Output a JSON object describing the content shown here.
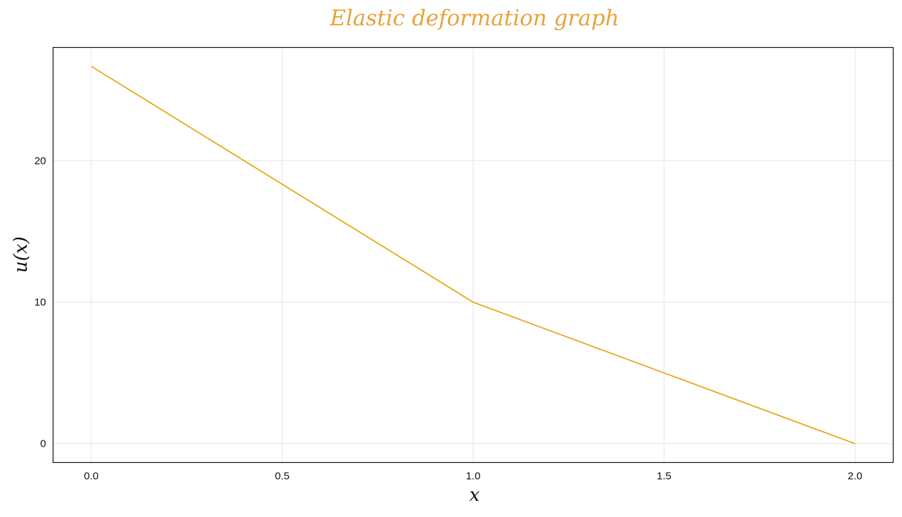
{
  "chart_data": {
    "type": "line",
    "title": "Elastic deformation graph",
    "xlabel": "x",
    "ylabel": "u(x)",
    "xlim": [
      -0.1,
      2.1
    ],
    "ylim": [
      -1.33,
      28.0
    ],
    "xticks": [
      0.0,
      0.5,
      1.0,
      1.5,
      2.0
    ],
    "xtick_labels": [
      "0.0",
      "0.5",
      "1.0",
      "1.5",
      "2.0"
    ],
    "yticks": [
      0,
      10,
      20
    ],
    "ytick_labels": [
      "0",
      "10",
      "20"
    ],
    "grid": true,
    "series": [
      {
        "color": "#e69f00",
        "x": [
          0.0,
          1.0,
          2.0
        ],
        "y": [
          26.67,
          10.0,
          0.0
        ]
      }
    ]
  },
  "colors": {
    "title": "#e8a33a",
    "line": "#e69f00",
    "grid": "#e6e6e6",
    "axis": "#111111"
  }
}
